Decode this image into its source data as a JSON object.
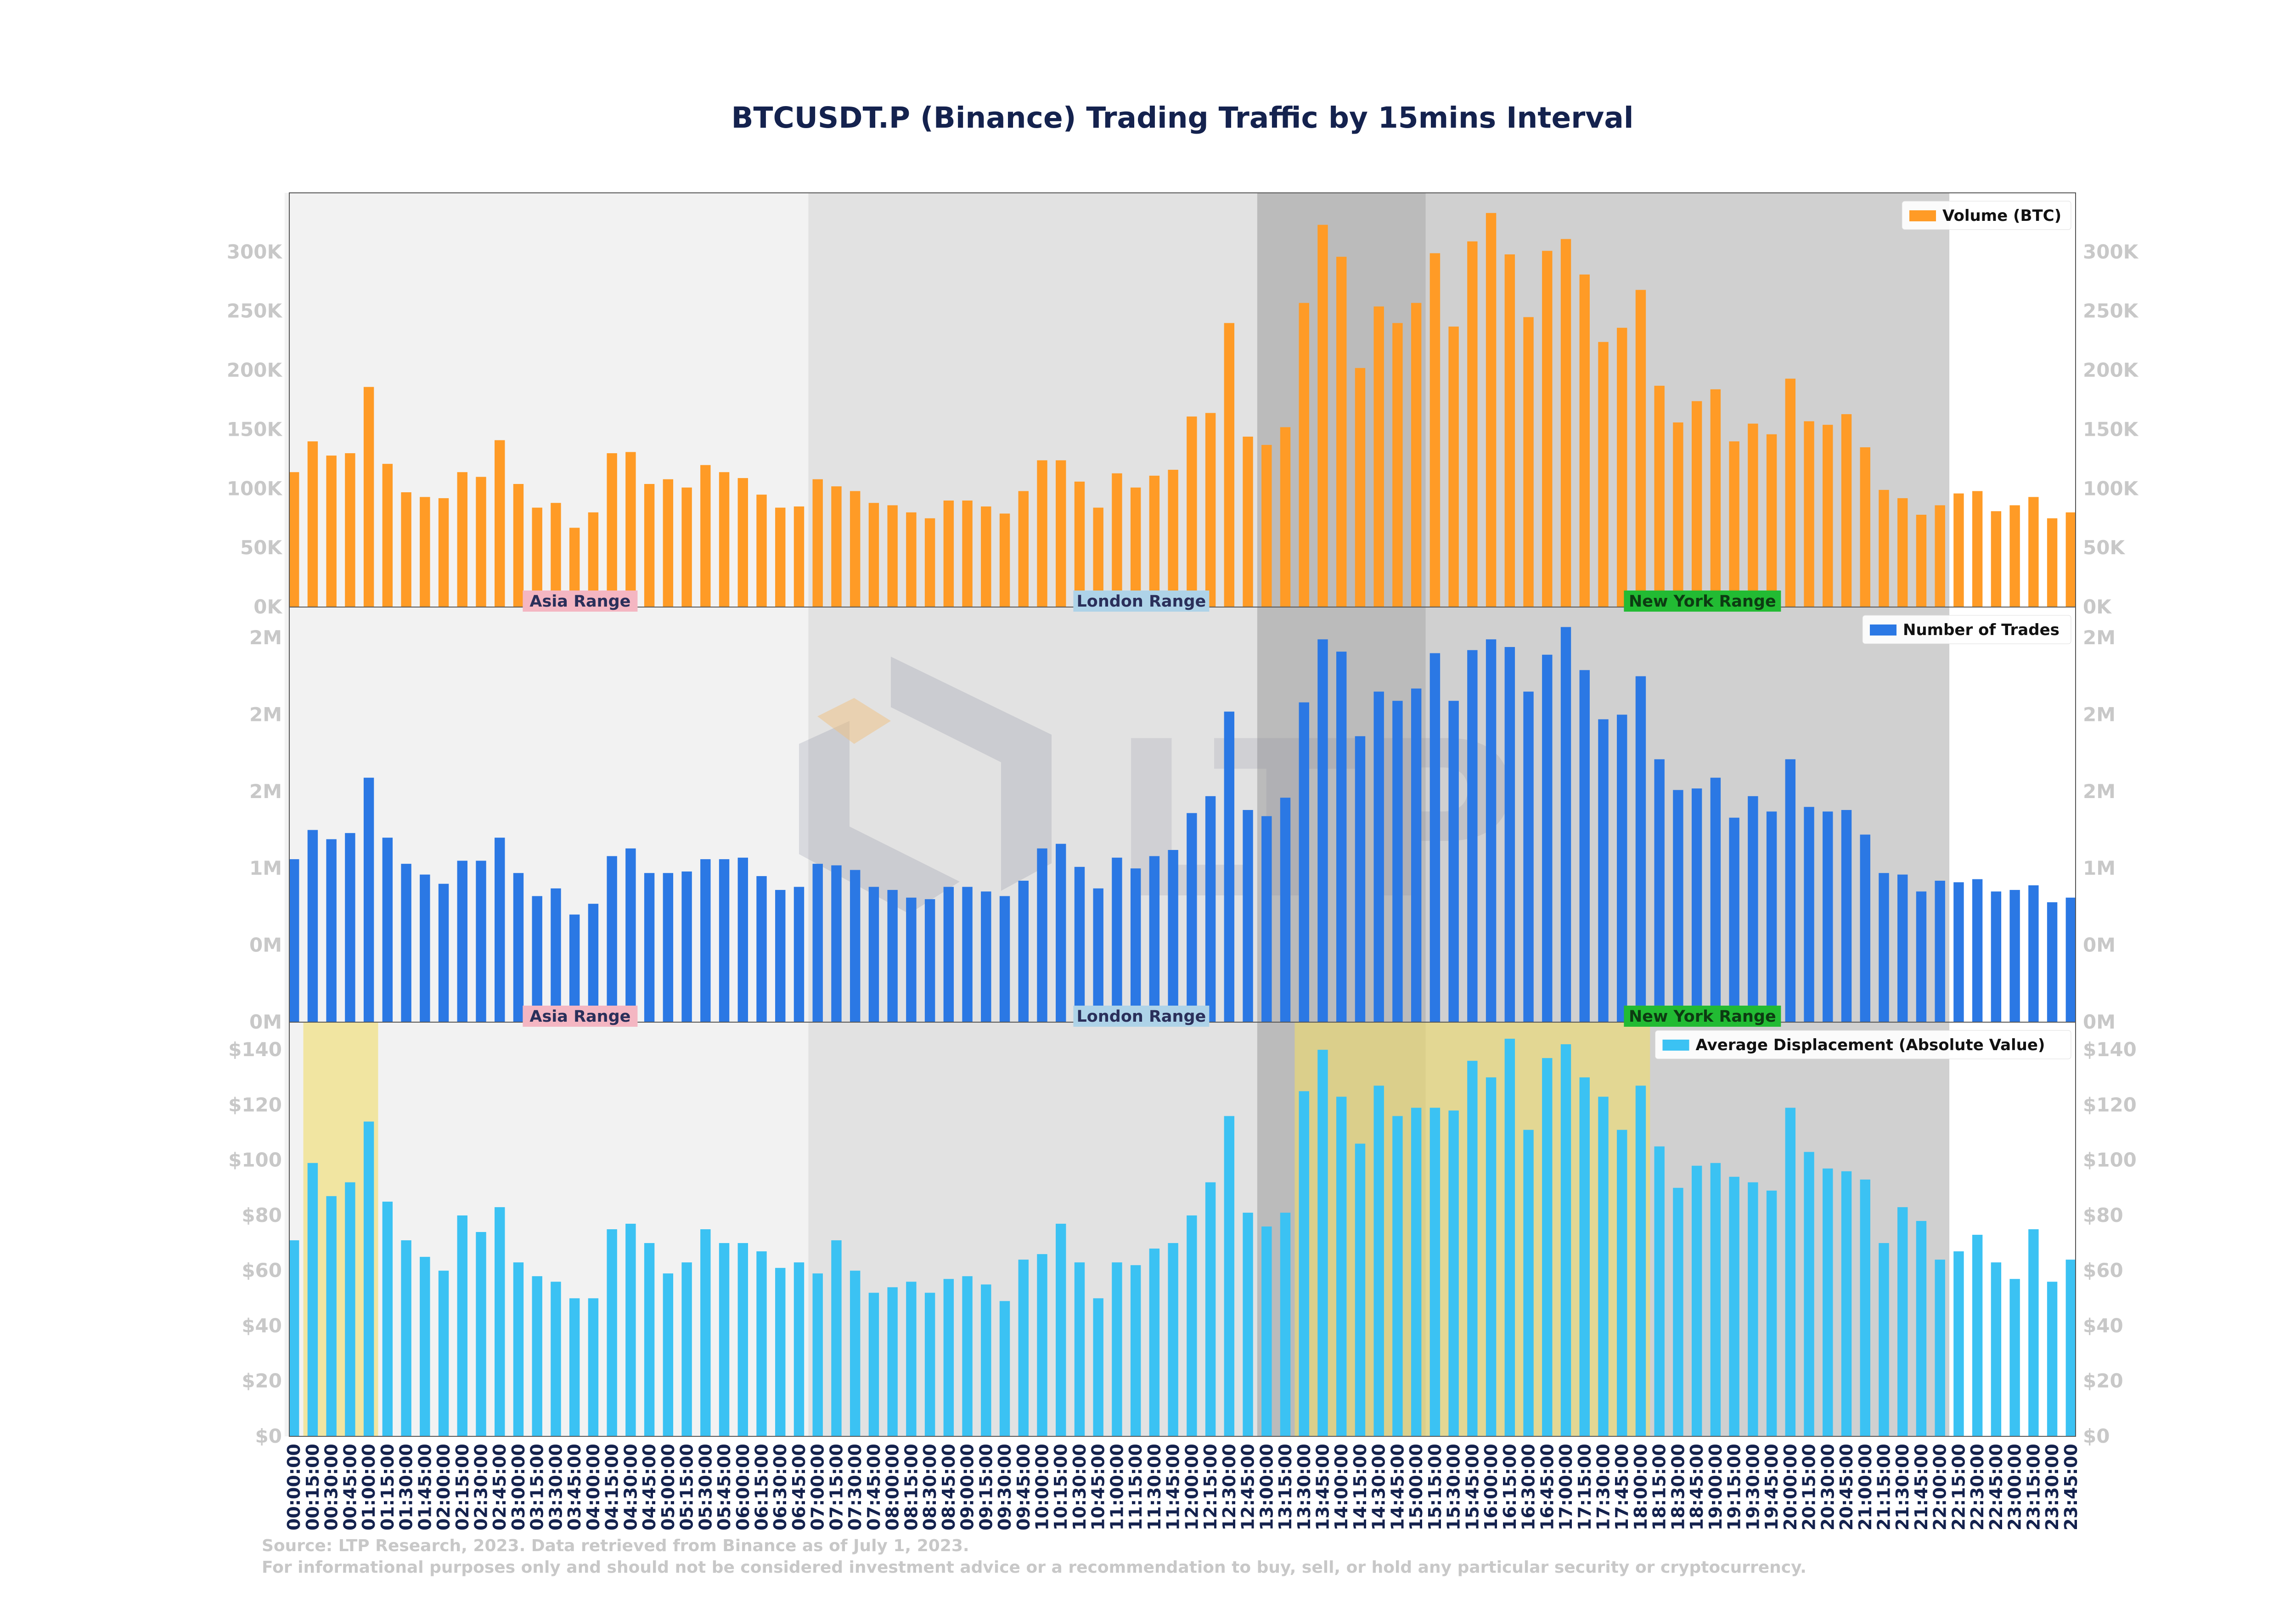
{
  "chart_data": {
    "type": "bar",
    "title": "BTCUSDT.P (Binance) Trading Traffic by 15mins Interval",
    "source": "Source: LTP Research, 2023. Data retrieved from Binance as of July 1, 2023.",
    "disclaimer": "For informational purposes only and should not be considered investment advice or a recommendation to buy, sell, or hold any particular security or cryptocurrency.",
    "watermark": "LTP",
    "categories": [
      "00:00:00",
      "00:15:00",
      "00:30:00",
      "00:45:00",
      "01:00:00",
      "01:15:00",
      "01:30:00",
      "01:45:00",
      "02:00:00",
      "02:15:00",
      "02:30:00",
      "02:45:00",
      "03:00:00",
      "03:15:00",
      "03:30:00",
      "03:45:00",
      "04:00:00",
      "04:15:00",
      "04:30:00",
      "04:45:00",
      "05:00:00",
      "05:15:00",
      "05:30:00",
      "05:45:00",
      "06:00:00",
      "06:15:00",
      "06:30:00",
      "06:45:00",
      "07:00:00",
      "07:15:00",
      "07:30:00",
      "07:45:00",
      "08:00:00",
      "08:15:00",
      "08:30:00",
      "08:45:00",
      "09:00:00",
      "09:15:00",
      "09:30:00",
      "09:45:00",
      "10:00:00",
      "10:15:00",
      "10:30:00",
      "10:45:00",
      "11:00:00",
      "11:15:00",
      "11:30:00",
      "11:45:00",
      "12:00:00",
      "12:15:00",
      "12:30:00",
      "12:45:00",
      "13:00:00",
      "13:15:00",
      "13:30:00",
      "13:45:00",
      "14:00:00",
      "14:15:00",
      "14:30:00",
      "14:45:00",
      "15:00:00",
      "15:15:00",
      "15:30:00",
      "15:45:00",
      "16:00:00",
      "16:15:00",
      "16:30:00",
      "16:45:00",
      "17:00:00",
      "17:15:00",
      "17:30:00",
      "17:45:00",
      "18:00:00",
      "18:15:00",
      "18:30:00",
      "18:45:00",
      "19:00:00",
      "19:15:00",
      "19:30:00",
      "19:45:00",
      "20:00:00",
      "20:15:00",
      "20:30:00",
      "20:45:00",
      "21:00:00",
      "21:15:00",
      "21:30:00",
      "21:45:00",
      "22:00:00",
      "22:15:00",
      "22:30:00",
      "22:45:00",
      "23:00:00",
      "23:15:00",
      "23:30:00",
      "23:45:00"
    ],
    "sessions": [
      {
        "label": "Asia Range",
        "start": 0,
        "end": 88,
        "box_color": "#f4b6c2",
        "shade": "#f2f2f2"
      },
      {
        "label": "London Range",
        "start": 28,
        "end": 60,
        "box_color": "#aed3e8",
        "shade": "#dcdcdc"
      },
      {
        "label": "New York Range",
        "start": 52,
        "end": 88,
        "box_color": "#22bb33",
        "shade": "#c4c4c4"
      }
    ],
    "session_label_anchors": [
      15.3,
      45.3,
      75.3
    ],
    "displacement_highlights": [
      {
        "start": 1,
        "end": 4
      },
      {
        "start": 54,
        "end": 72
      }
    ],
    "highlight_color": "#f0dc6a",
    "panels": [
      {
        "legend": "Volume (BTC)",
        "color": "#ff9b26",
        "ylim": [
          0,
          350000
        ],
        "ticks": [
          0,
          50000,
          100000,
          150000,
          200000,
          250000,
          300000
        ],
        "tick_labels": [
          "0K",
          "50K",
          "100K",
          "150K",
          "200K",
          "250K",
          "300K"
        ],
        "values": [
          114000,
          140000,
          128000,
          130000,
          186000,
          121000,
          97000,
          93000,
          92000,
          114000,
          110000,
          141000,
          104000,
          84000,
          88000,
          67000,
          80000,
          130000,
          131000,
          104000,
          108000,
          101000,
          120000,
          114000,
          109000,
          95000,
          84000,
          85000,
          108000,
          102000,
          98000,
          88000,
          86000,
          80000,
          75000,
          90000,
          90000,
          85000,
          79000,
          98000,
          124000,
          124000,
          106000,
          84000,
          113000,
          101000,
          111000,
          116000,
          161000,
          164000,
          240000,
          144000,
          137000,
          152000,
          257000,
          323000,
          296000,
          202000,
          254000,
          240000,
          257000,
          299000,
          237000,
          309000,
          333000,
          298000,
          245000,
          301000,
          311000,
          281000,
          224000,
          236000,
          268000,
          187000,
          156000,
          174000,
          184000,
          140000,
          155000,
          146000,
          193000,
          157000,
          154000,
          163000,
          135000,
          99000,
          92000,
          78000,
          86000,
          96000,
          98000,
          81000,
          86000,
          93000,
          75000,
          80000
        ]
      },
      {
        "legend": "Number of Trades",
        "color": "#2b78e4",
        "ylim": [
          0,
          2700000
        ],
        "ticks": [
          0,
          500000,
          1000000,
          1500000,
          2000000,
          2500000
        ],
        "tick_labels": [
          "0M",
          "0M",
          "1M",
          "2M",
          "2M",
          "2M"
        ],
        "values": [
          1060000,
          1250000,
          1190000,
          1230000,
          1590000,
          1200000,
          1030000,
          960000,
          900000,
          1050000,
          1050000,
          1200000,
          970000,
          820000,
          870000,
          700000,
          770000,
          1080000,
          1130000,
          970000,
          970000,
          980000,
          1060000,
          1060000,
          1070000,
          950000,
          860000,
          880000,
          1030000,
          1020000,
          990000,
          880000,
          860000,
          810000,
          800000,
          880000,
          880000,
          850000,
          820000,
          920000,
          1130000,
          1160000,
          1010000,
          870000,
          1070000,
          1000000,
          1080000,
          1120000,
          1360000,
          1470000,
          2020000,
          1380000,
          1340000,
          1460000,
          2080000,
          2490000,
          2410000,
          1860000,
          2150000,
          2090000,
          2170000,
          2400000,
          2090000,
          2420000,
          2490000,
          2440000,
          2150000,
          2390000,
          2570000,
          2290000,
          1970000,
          2000000,
          2250000,
          1710000,
          1510000,
          1520000,
          1590000,
          1330000,
          1470000,
          1370000,
          1710000,
          1400000,
          1370000,
          1380000,
          1220000,
          970000,
          960000,
          850000,
          920000,
          910000,
          930000,
          850000,
          860000,
          890000,
          780000,
          810000
        ]
      },
      {
        "legend": "Average Displacement (Absolute Value)",
        "color": "#3bc2f3",
        "ylim": [
          0,
          150
        ],
        "ticks": [
          0,
          20,
          40,
          60,
          80,
          100,
          120,
          140
        ],
        "tick_labels": [
          "$0",
          "$20",
          "$40",
          "$60",
          "$80",
          "$100",
          "$120",
          "$140"
        ],
        "values": [
          71,
          99,
          87,
          92,
          114,
          85,
          71,
          65,
          60,
          80,
          74,
          83,
          63,
          58,
          56,
          50,
          50,
          75,
          77,
          70,
          59,
          63,
          75,
          70,
          70,
          67,
          61,
          63,
          59,
          71,
          60,
          52,
          54,
          56,
          52,
          57,
          58,
          55,
          49,
          64,
          66,
          77,
          63,
          50,
          63,
          62,
          68,
          70,
          80,
          92,
          116,
          81,
          76,
          81,
          125,
          140,
          123,
          106,
          127,
          116,
          119,
          119,
          118,
          136,
          130,
          144,
          111,
          137,
          142,
          130,
          123,
          111,
          127,
          105,
          90,
          98,
          99,
          94,
          92,
          89,
          119,
          103,
          97,
          96,
          93,
          70,
          83,
          78,
          64,
          67,
          73,
          63,
          57,
          75,
          56,
          64
        ]
      }
    ]
  }
}
